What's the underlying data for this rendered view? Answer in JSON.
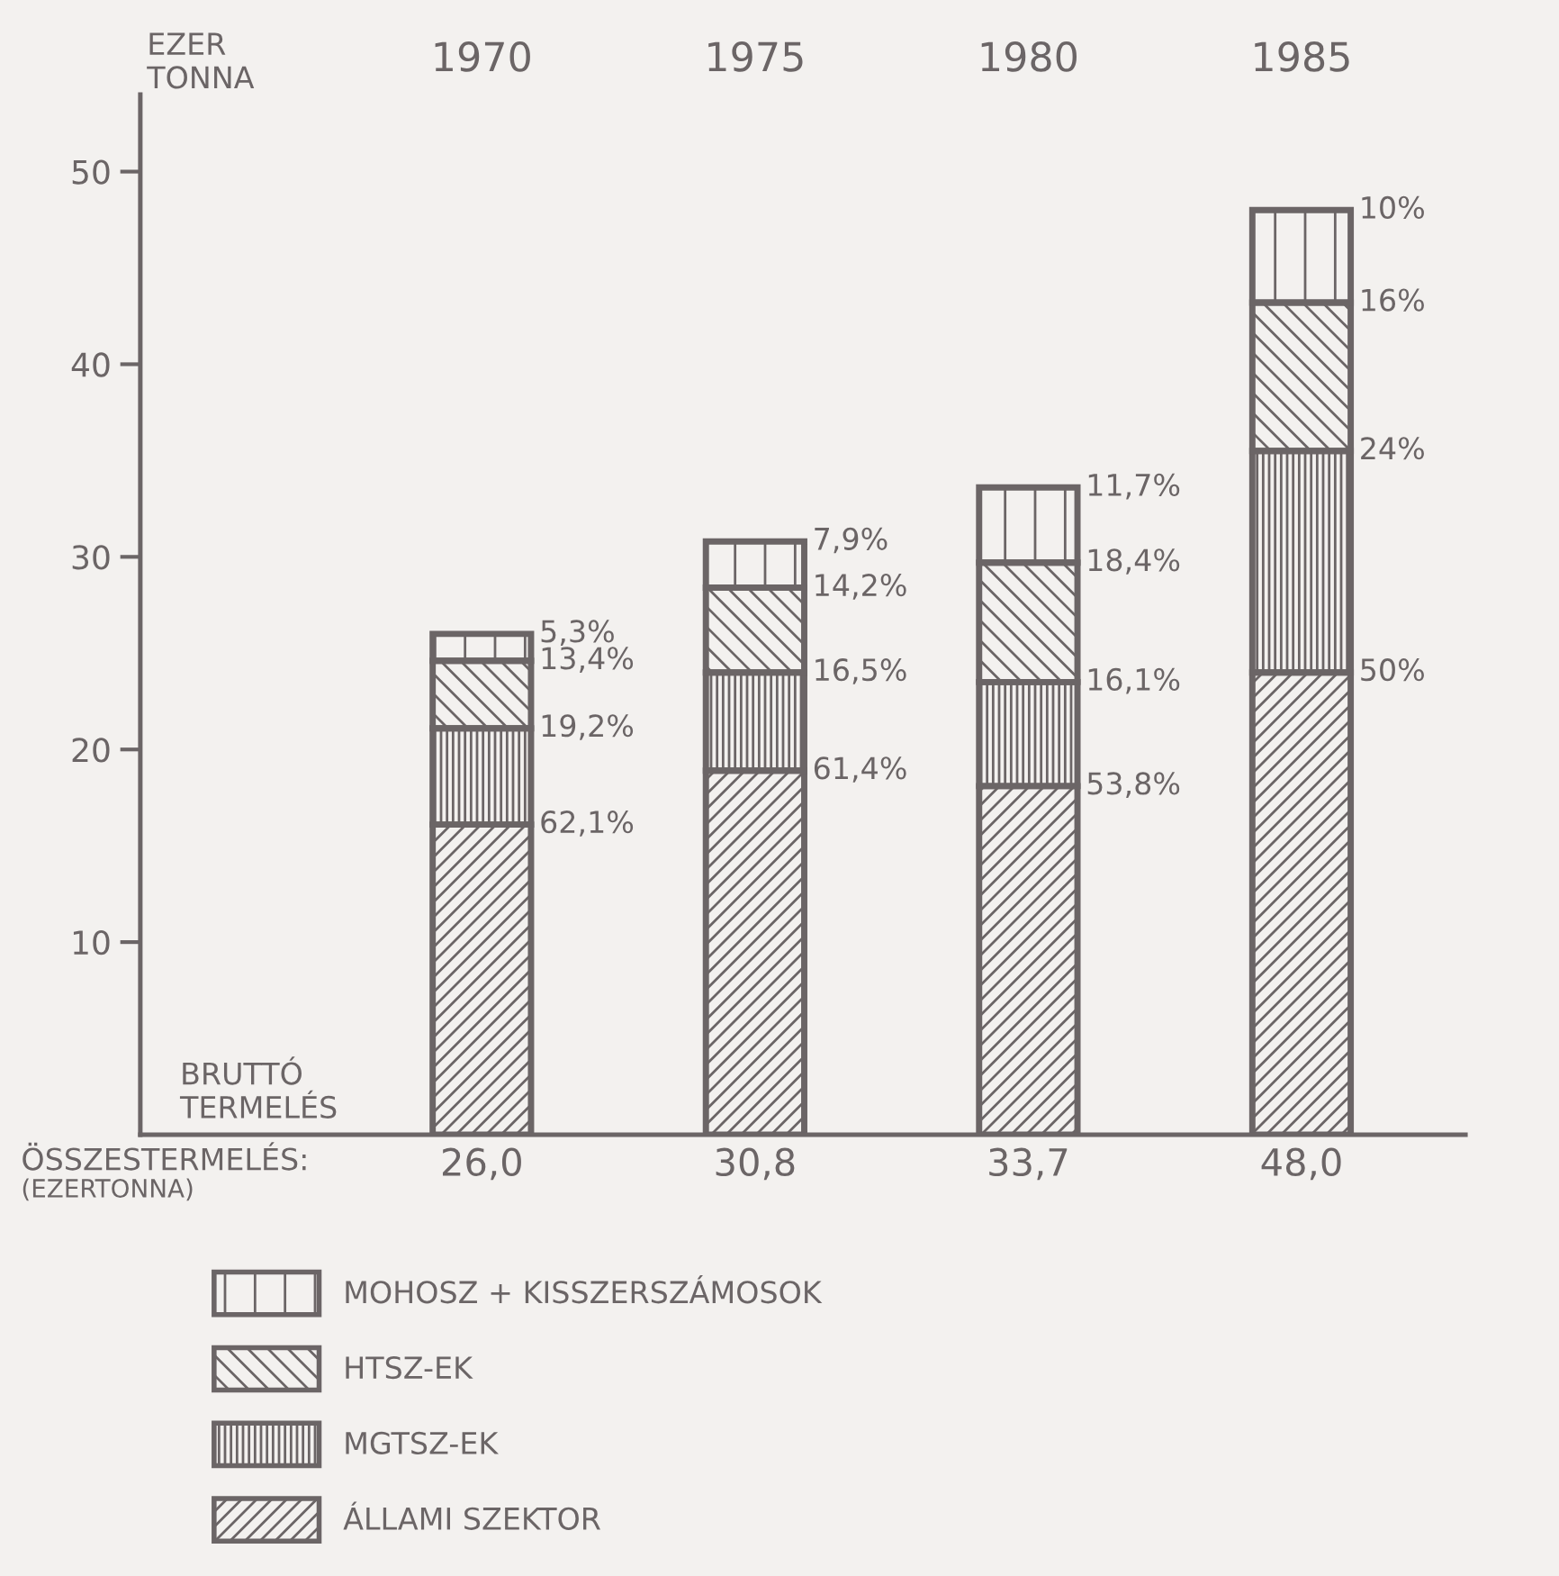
{
  "chart_data": {
    "type": "bar",
    "stacked": true,
    "categories": [
      "1970",
      "1975",
      "1980",
      "1985"
    ],
    "ylabel": "EZER\nTONNA",
    "xlabel": "BRUTTÓ\nTERMELÉS",
    "ylim": [
      0,
      54
    ],
    "yticks": [
      10,
      20,
      30,
      40,
      50
    ],
    "grid": false,
    "legend": "bottom",
    "series": [
      {
        "name": "ÁLLAMI SZEKTOR",
        "color": "#6b6566",
        "values": [
          16.1,
          18.9,
          18.1,
          24.0
        ]
      },
      {
        "name": "MGTSZ-EK",
        "color": "#6b6566",
        "values": [
          5.0,
          5.1,
          5.4,
          11.5
        ]
      },
      {
        "name": "HTSZ-EK",
        "color": "#6b6566",
        "values": [
          3.5,
          4.4,
          6.2,
          7.7
        ]
      },
      {
        "name": "MOHOSZ + KISSZERSZÁMOSOK",
        "color": "#6b6566",
        "values": [
          1.4,
          2.4,
          3.9,
          4.8
        ]
      }
    ],
    "totals": [
      "26,0",
      "30,8",
      "33,7",
      "48,0"
    ],
    "annotations": [
      "ÖSSZESTERMELÉS:",
      "(EZERTONNA)",
      {
        "text": "62,1%",
        "x": "1970",
        "y": 16.1
      },
      {
        "text": "19,2%",
        "x": "1970",
        "y": 21.1
      },
      {
        "text": "13,4%",
        "x": "1970",
        "y": 24.6
      },
      {
        "text": "5,3%",
        "x": "1970",
        "y": 26.0
      },
      {
        "text": "61,4%",
        "x": "1975",
        "y": 18.9
      },
      {
        "text": "16,5%",
        "x": "1975",
        "y": 24.0
      },
      {
        "text": "14,2%",
        "x": "1975",
        "y": 28.4
      },
      {
        "text": "7,9%",
        "x": "1975",
        "y": 30.8
      },
      {
        "text": "53,8%",
        "x": "1980",
        "y": 18.1
      },
      {
        "text": "16,1%",
        "x": "1980",
        "y": 23.5
      },
      {
        "text": "18,4%",
        "x": "1980",
        "y": 29.7
      },
      {
        "text": "11,7%",
        "x": "1980",
        "y": 33.6
      },
      {
        "text": "50%",
        "x": "1985",
        "y": 24.0
      },
      {
        "text": "24%",
        "x": "1985",
        "y": 35.5
      },
      {
        "text": "16%",
        "x": "1985",
        "y": 43.2
      },
      {
        "text": "10%",
        "x": "1985",
        "y": 48.0
      }
    ]
  }
}
